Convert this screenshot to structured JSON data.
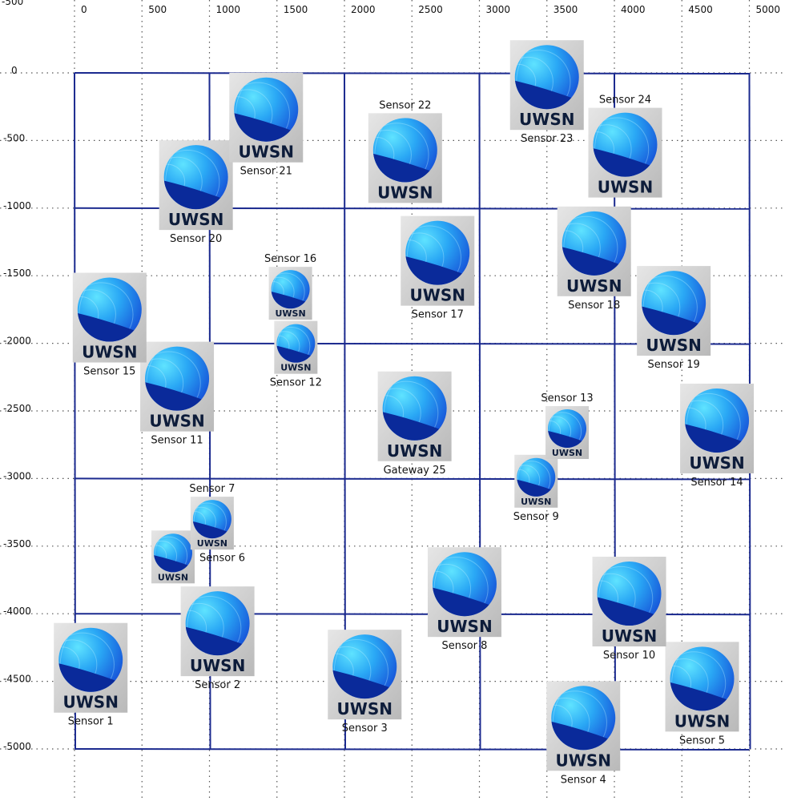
{
  "canvas": {
    "x_ticks": [
      0,
      500,
      1000,
      1500,
      2000,
      2500,
      3000,
      3500,
      4000,
      4500,
      5000
    ],
    "y_ticks": [
      0,
      -500,
      -1000,
      -1500,
      -2000,
      -2500,
      -3000,
      -3500,
      -4000,
      -4500,
      -5000
    ],
    "corner_label": "-500",
    "grid": "dotted",
    "cell_lines": {
      "x": [
        0,
        1000,
        2000,
        3000,
        4000,
        5000
      ],
      "y": [
        0,
        -1000,
        -2000,
        -3000,
        -4000,
        -5000
      ]
    }
  },
  "icon_text": "UWSN",
  "colors": {
    "cell_border": "#1b2a8f",
    "grid_dots": "#555555",
    "icon_light": "#39b9ff",
    "icon_dark": "#0a2a9a",
    "icon_bg": "#c8c8c8"
  },
  "nodes": [
    {
      "label": "Sensor 1",
      "x": 120,
      "y": -4400,
      "size": "large",
      "label_pos": "below"
    },
    {
      "label": "Sensor 2",
      "x": 1060,
      "y": -4130,
      "size": "large",
      "label_pos": "below"
    },
    {
      "label": "Sensor 3",
      "x": 2150,
      "y": -4450,
      "size": "large",
      "label_pos": "below"
    },
    {
      "label": "Sensor 4",
      "x": 3770,
      "y": -4830,
      "size": "large",
      "label_pos": "below"
    },
    {
      "label": "Sensor 5",
      "x": 4650,
      "y": -4540,
      "size": "large",
      "label_pos": "below"
    },
    {
      "label": "Sensor 6",
      "x": 730,
      "y": -3580,
      "size": "small",
      "label_pos": "right"
    },
    {
      "label": "Sensor 7",
      "x": 1020,
      "y": -3330,
      "size": "small",
      "label_pos": "above"
    },
    {
      "label": "Sensor 8",
      "x": 2890,
      "y": -3840,
      "size": "large",
      "label_pos": "below"
    },
    {
      "label": "Sensor 9",
      "x": 3420,
      "y": -3020,
      "size": "small",
      "label_pos": "below"
    },
    {
      "label": "Sensor 10",
      "x": 4110,
      "y": -3910,
      "size": "large",
      "label_pos": "below"
    },
    {
      "label": "Sensor 11",
      "x": 760,
      "y": -2320,
      "size": "large",
      "label_pos": "below"
    },
    {
      "label": "Sensor 12",
      "x": 1640,
      "y": -2030,
      "size": "small",
      "label_pos": "below"
    },
    {
      "label": "Sensor 13",
      "x": 3650,
      "y": -2660,
      "size": "small",
      "label_pos": "above"
    },
    {
      "label": "Sensor 14",
      "x": 4760,
      "y": -2630,
      "size": "large",
      "label_pos": "below"
    },
    {
      "label": "Sensor 15",
      "x": 260,
      "y": -1810,
      "size": "large",
      "label_pos": "below"
    },
    {
      "label": "Sensor 16",
      "x": 1600,
      "y": -1630,
      "size": "small",
      "label_pos": "above"
    },
    {
      "label": "Sensor 17",
      "x": 2690,
      "y": -1390,
      "size": "large",
      "label_pos": "below"
    },
    {
      "label": "Sensor 18",
      "x": 3850,
      "y": -1320,
      "size": "large",
      "label_pos": "below"
    },
    {
      "label": "Sensor 19",
      "x": 4440,
      "y": -1760,
      "size": "large",
      "label_pos": "below"
    },
    {
      "label": "Sensor 20",
      "x": 900,
      "y": -830,
      "size": "large",
      "label_pos": "below"
    },
    {
      "label": "Sensor 21",
      "x": 1420,
      "y": -330,
      "size": "large",
      "label_pos": "below"
    },
    {
      "label": "Sensor 22",
      "x": 2450,
      "y": -630,
      "size": "large",
      "label_pos": "above"
    },
    {
      "label": "Sensor 23",
      "x": 3500,
      "y": -90,
      "size": "large",
      "label_pos": "below"
    },
    {
      "label": "Sensor 24",
      "x": 4080,
      "y": -590,
      "size": "large",
      "label_pos": "above"
    },
    {
      "label": "Gateway 25",
      "x": 2520,
      "y": -2540,
      "size": "large",
      "label_pos": "below"
    }
  ]
}
